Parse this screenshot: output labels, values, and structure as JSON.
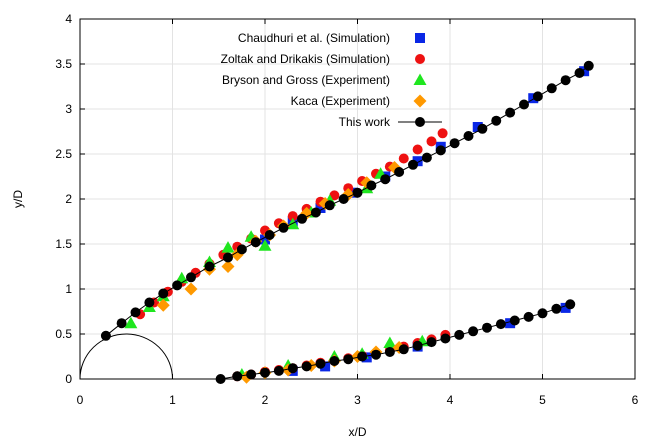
{
  "chart_data": {
    "type": "scatter",
    "title": "",
    "xlabel": "x/D",
    "ylabel": "y/D",
    "xlim": [
      0,
      6
    ],
    "ylim": [
      0,
      4
    ],
    "xticks": [
      "0",
      "1",
      "2",
      "3",
      "4",
      "5",
      "6"
    ],
    "yticks": [
      "0",
      "0.5",
      "1",
      "1.5",
      "2",
      "2.5",
      "3",
      "3.5",
      "4"
    ],
    "grid": true,
    "legend_position": "top-center",
    "annotation_shape": {
      "type": "semicircle",
      "center": [
        0.5,
        0
      ],
      "radius": 0.5
    },
    "series": [
      {
        "name": "Chaudhuri et al. (Simulation)",
        "marker": "square",
        "color": "#0a27e6",
        "branches": [
          {
            "x": [
              2.0,
              2.3,
              2.6,
              2.95,
              3.3,
              3.65,
              3.9,
              4.3,
              4.9,
              5.45
            ],
            "y": [
              1.55,
              1.75,
              1.9,
              2.07,
              2.25,
              2.42,
              2.58,
              2.8,
              3.12,
              3.42
            ]
          },
          {
            "x": [
              2.3,
              2.65,
              3.1,
              3.65,
              4.65,
              5.25
            ],
            "y": [
              0.09,
              0.14,
              0.24,
              0.36,
              0.62,
              0.79
            ]
          }
        ]
      },
      {
        "name": "Zoltak and Drikakis (Simulation)",
        "marker": "circle",
        "color": "#ee1111",
        "branches": [
          {
            "x": [
              0.65,
              0.8,
              0.95,
              1.1,
              1.25,
              1.4,
              1.55,
              1.7,
              1.85,
              2.0,
              2.15,
              2.3,
              2.45,
              2.6,
              2.75,
              2.9,
              3.05,
              3.2,
              3.35,
              3.5,
              3.65,
              3.8,
              3.92
            ],
            "y": [
              0.72,
              0.85,
              0.97,
              1.08,
              1.18,
              1.28,
              1.38,
              1.47,
              1.56,
              1.65,
              1.73,
              1.81,
              1.89,
              1.97,
              2.04,
              2.12,
              2.2,
              2.28,
              2.36,
              2.45,
              2.55,
              2.64,
              2.73
            ]
          },
          {
            "x": [
              1.7,
              1.85,
              2.0,
              2.15,
              2.3,
              2.45,
              2.6,
              2.75,
              2.9,
              3.05,
              3.2,
              3.35,
              3.5,
              3.65,
              3.8,
              3.95
            ],
            "y": [
              0.03,
              0.05,
              0.08,
              0.1,
              0.12,
              0.15,
              0.18,
              0.2,
              0.23,
              0.26,
              0.29,
              0.32,
              0.36,
              0.4,
              0.44,
              0.49
            ]
          }
        ]
      },
      {
        "name": "Bryson and Gross (Experiment)",
        "marker": "triangle",
        "color": "#1fe61f",
        "branches": [
          {
            "x": [
              0.55,
              0.75,
              0.9,
              1.1,
              1.4,
              1.6,
              1.85,
              2.0,
              2.3,
              2.5,
              2.7,
              3.1,
              3.25
            ],
            "y": [
              0.62,
              0.8,
              0.92,
              1.12,
              1.3,
              1.46,
              1.58,
              1.48,
              1.72,
              1.85,
              1.98,
              2.12,
              2.28
            ]
          },
          {
            "x": [
              1.75,
              2.25,
              2.75,
              3.05,
              3.35,
              3.7
            ],
            "y": [
              0.05,
              0.15,
              0.25,
              0.28,
              0.4,
              0.42
            ]
          }
        ]
      },
      {
        "name": "Kaca (Experiment)",
        "marker": "diamond",
        "color": "#ff9900",
        "branches": [
          {
            "x": [
              0.9,
              1.2,
              1.4,
              1.6,
              1.7,
              1.9,
              2.05,
              2.2,
              2.45,
              2.65,
              2.9,
              3.1,
              3.4
            ],
            "y": [
              0.82,
              1.0,
              1.22,
              1.25,
              1.38,
              1.53,
              1.6,
              1.7,
              1.84,
              1.95,
              2.05,
              2.18,
              2.35
            ]
          },
          {
            "x": [
              1.8,
              2.0,
              2.25,
              2.5,
              2.75,
              3.0,
              3.2,
              3.45
            ],
            "y": [
              0.02,
              0.07,
              0.1,
              0.15,
              0.2,
              0.25,
              0.3,
              0.35
            ]
          }
        ]
      },
      {
        "name": "This work",
        "marker": "circle-line",
        "color": "#000000",
        "branches": [
          {
            "x": [
              0.28,
              0.45,
              0.6,
              0.75,
              0.9,
              1.05,
              1.2,
              1.4,
              1.6,
              1.75,
              1.9,
              2.05,
              2.2,
              2.4,
              2.55,
              2.7,
              2.85,
              3.0,
              3.15,
              3.3,
              3.45,
              3.6,
              3.75,
              3.9,
              4.05,
              4.2,
              4.35,
              4.5,
              4.65,
              4.8,
              4.95,
              5.1,
              5.25,
              5.4,
              5.5
            ],
            "y": [
              0.48,
              0.62,
              0.74,
              0.85,
              0.95,
              1.04,
              1.13,
              1.25,
              1.35,
              1.44,
              1.52,
              1.6,
              1.68,
              1.78,
              1.85,
              1.93,
              2.0,
              2.07,
              2.15,
              2.22,
              2.3,
              2.38,
              2.46,
              2.54,
              2.62,
              2.7,
              2.78,
              2.87,
              2.96,
              3.05,
              3.14,
              3.23,
              3.32,
              3.4,
              3.48
            ]
          },
          {
            "x": [
              1.52,
              1.7,
              1.85,
              2.0,
              2.15,
              2.3,
              2.45,
              2.6,
              2.75,
              2.9,
              3.05,
              3.2,
              3.35,
              3.5,
              3.65,
              3.8,
              3.95,
              4.1,
              4.25,
              4.4,
              4.55,
              4.7,
              4.85,
              5.0,
              5.15,
              5.3
            ],
            "y": [
              0.0,
              0.03,
              0.05,
              0.07,
              0.09,
              0.12,
              0.14,
              0.17,
              0.2,
              0.22,
              0.25,
              0.27,
              0.3,
              0.33,
              0.37,
              0.41,
              0.45,
              0.49,
              0.53,
              0.57,
              0.61,
              0.65,
              0.69,
              0.73,
              0.78,
              0.83
            ]
          }
        ]
      }
    ]
  }
}
